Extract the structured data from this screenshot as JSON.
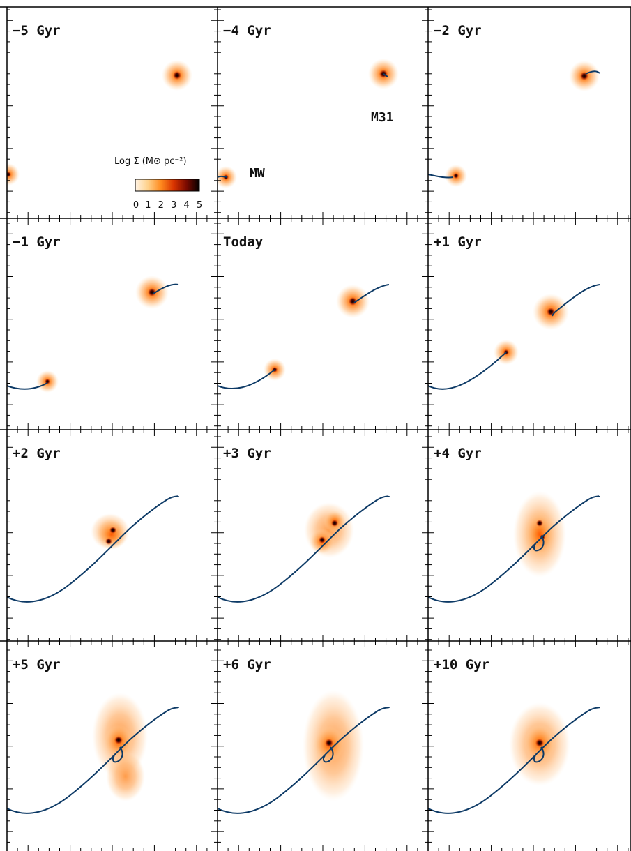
{
  "figure": {
    "panels": [
      {
        "label": "−5 Gyr"
      },
      {
        "label": "−4 Gyr"
      },
      {
        "label": "−2 Gyr"
      },
      {
        "label": "−1 Gyr"
      },
      {
        "label": "Today"
      },
      {
        "label": "+1 Gyr"
      },
      {
        "label": "+2 Gyr"
      },
      {
        "label": "+3 Gyr"
      },
      {
        "label": "+4 Gyr"
      },
      {
        "label": "+5 Gyr"
      },
      {
        "label": "+6 Gyr"
      },
      {
        "label": "+10 Gyr"
      }
    ],
    "galaxy_labels": {
      "m31": "M31",
      "mw": "MW"
    },
    "colorbar": {
      "title": "Log Σ (M⊙ pc⁻²)",
      "ticks": [
        "0",
        "1",
        "2",
        "3",
        "4",
        "5"
      ],
      "colors": [
        "#fff4e6",
        "#ffd089",
        "#ff8a1e",
        "#d83300",
        "#7a0a00",
        "#000000"
      ]
    },
    "colors": {
      "trajectory": "#0d3a66",
      "frame": "#000000",
      "background": "#ffffff"
    }
  }
}
